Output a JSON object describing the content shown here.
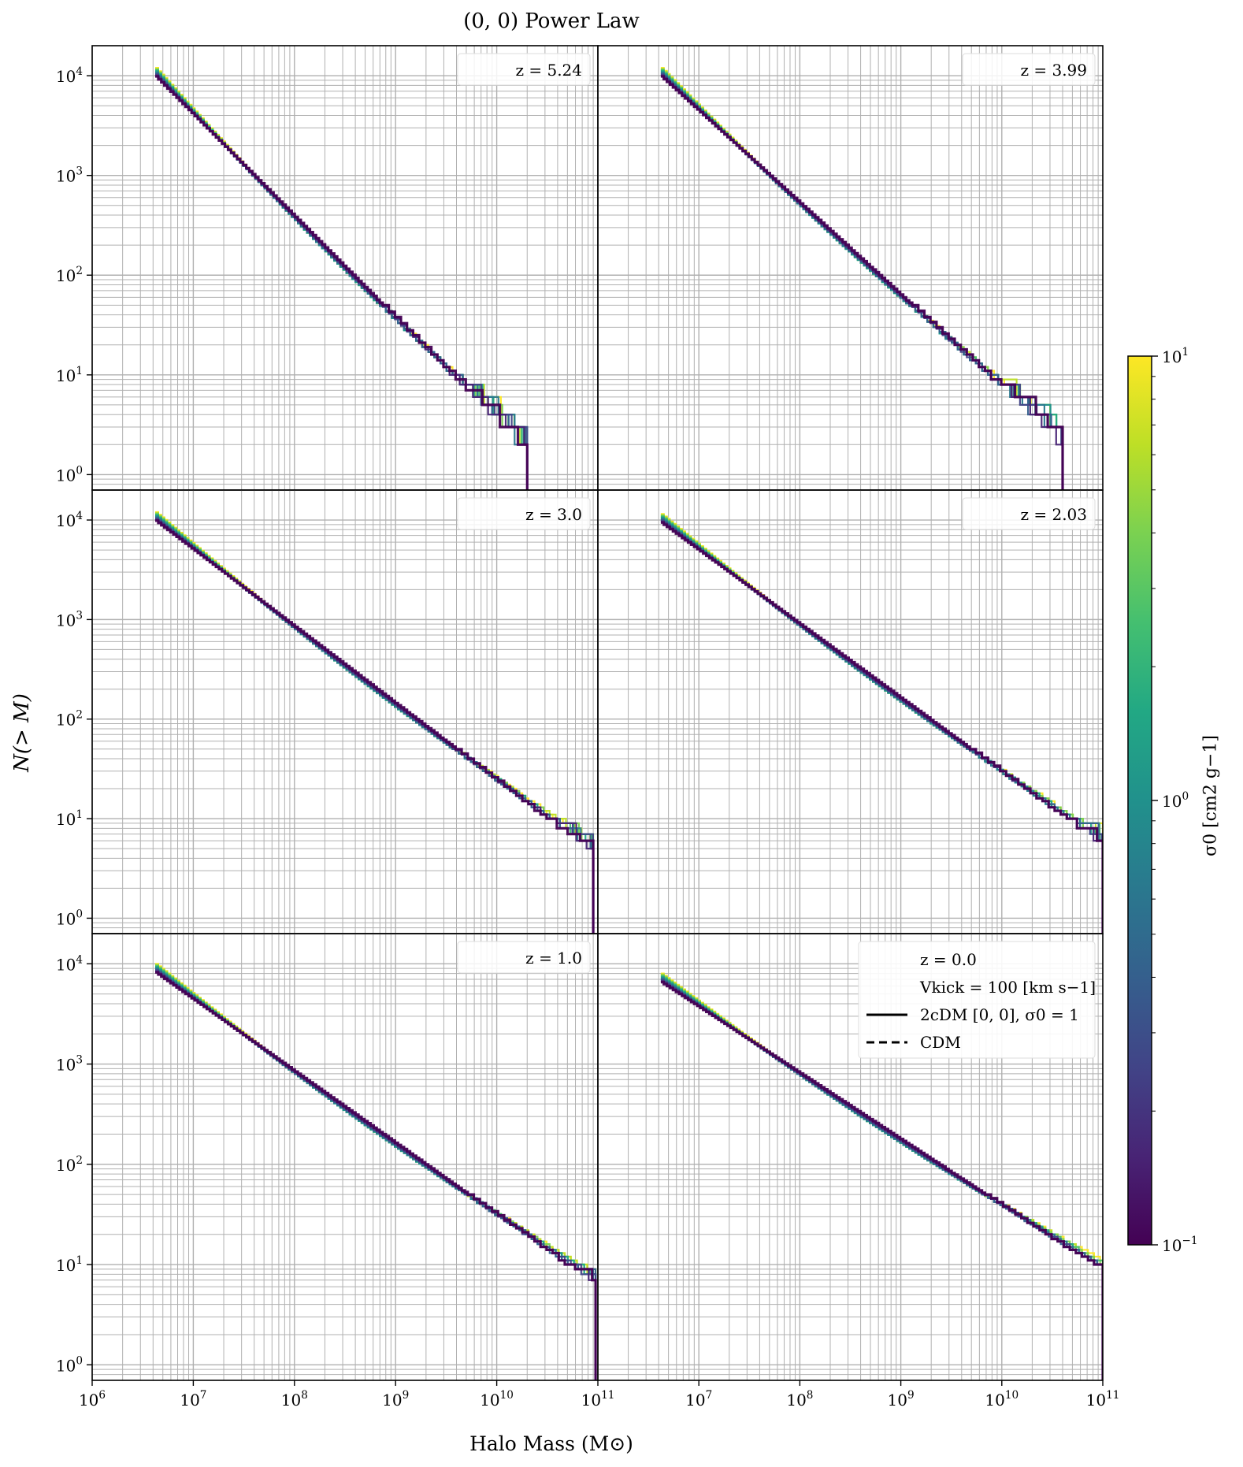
{
  "chart_data": {
    "type": "line",
    "title": "(0, 0) Power Law",
    "xlabel": "Halo Mass (M⊙)",
    "ylabel": "N(> M)",
    "xscale": "log",
    "yscale": "log",
    "xlim": [
      1000000,
      100000000000
    ],
    "grid": true,
    "x_ticks": [
      "10^6",
      "10^7",
      "10^8",
      "10^9",
      "10^10",
      "10^11"
    ],
    "y_ticks": [
      "10^0",
      "10^1",
      "10^2",
      "10^3",
      "10^4"
    ],
    "colorbar": {
      "label": "σ0 [cm2 g−1]",
      "colormap": "viridis",
      "scale": "log",
      "range": [
        0.1,
        10
      ],
      "ticks": [
        "10^−1",
        "10^0",
        "10^1"
      ],
      "colors": [
        "#440154",
        "#482475",
        "#414487",
        "#355f8d",
        "#2a788e",
        "#21918c",
        "#22a884",
        "#44bf70",
        "#7ad151",
        "#bddf26",
        "#fde725"
      ]
    },
    "panels": [
      {
        "label": "z = 5.24",
        "ylim": [
          0.7,
          20000
        ],
        "n_max": 12000,
        "m_min": 4200000,
        "m_max": 20000000000,
        "slope": 0.92
      },
      {
        "label": "z = 3.99",
        "ylim": [
          0.7,
          20000
        ],
        "n_max": 12000,
        "m_min": 4200000,
        "m_max": 40000000000,
        "slope": 0.9
      },
      {
        "label": "z = 3.0",
        "ylim": [
          0.7,
          20000
        ],
        "n_max": 12000,
        "m_min": 4200000,
        "m_max": 90000000000,
        "slope": 0.82
      },
      {
        "label": "z = 2.03",
        "ylim": [
          0.7,
          20000
        ],
        "n_max": 11500,
        "m_min": 4200000,
        "m_max": 100000000000,
        "slope": 0.8
      },
      {
        "label": "z = 1.0",
        "ylim": [
          0.7,
          20000
        ],
        "n_max": 10000,
        "m_min": 4200000,
        "m_max": 95000000000,
        "slope": 0.78
      },
      {
        "label": "z = 0.0",
        "ylim": [
          0.7,
          20000
        ],
        "n_max": 8000,
        "m_min": 4200000,
        "m_max": 100000000000,
        "slope": 0.74
      }
    ],
    "legend": {
      "position": "upper right of bottom-right panel",
      "entries": [
        {
          "label": "z = 0.0",
          "style": "none"
        },
        {
          "label": "Vkick = 100 [km s−1]",
          "style": "none"
        },
        {
          "label": "2cDM [0, 0], σ0 = 1",
          "style": "solid"
        },
        {
          "label": "CDM",
          "style": "dashed"
        }
      ]
    }
  }
}
